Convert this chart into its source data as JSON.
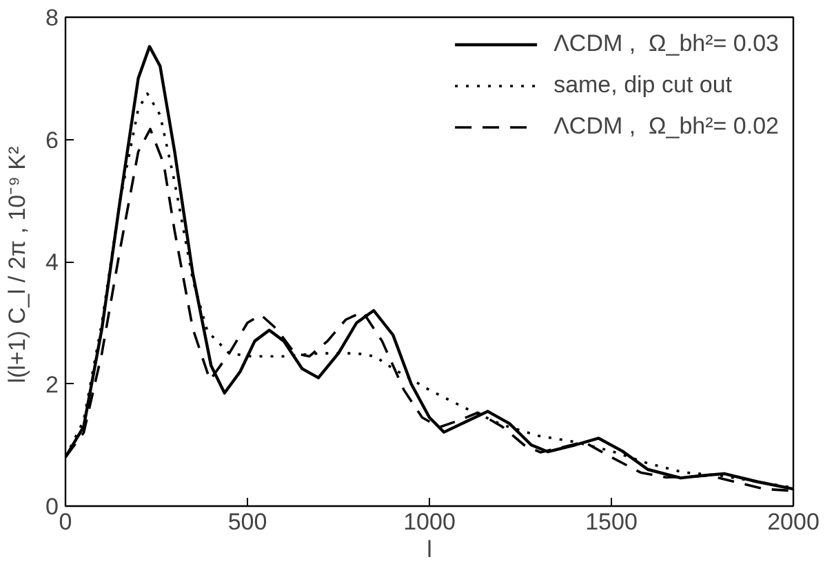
{
  "chart_data": {
    "type": "line",
    "xlabel": "l",
    "ylabel": "l(l+1) C_l / 2π ,  10⁻⁹ K²",
    "xlim": [
      0,
      2000
    ],
    "ylim": [
      0,
      8
    ],
    "xticks": [
      0,
      500,
      1000,
      1500,
      2000
    ],
    "yticks": [
      0,
      2,
      4,
      6,
      8
    ],
    "grid": false,
    "legend": "top right",
    "marker": "none",
    "series": [
      {
        "name": "ΛCDM ,  Ω_bh²= 0.03",
        "color": "#000000",
        "line_style": "solid",
        "x": [
          0,
          50,
          100,
          150,
          200,
          231,
          260,
          300,
          350,
          400,
          437,
          480,
          520,
          560,
          600,
          650,
          695,
          750,
          800,
          847,
          900,
          950,
          1000,
          1040,
          1100,
          1160,
          1220,
          1280,
          1325,
          1400,
          1465,
          1530,
          1600,
          1690,
          1750,
          1810,
          1900,
          2000
        ],
        "values": [
          0.8,
          1.3,
          2.9,
          5.0,
          7.0,
          7.52,
          7.2,
          5.8,
          3.8,
          2.3,
          1.85,
          2.2,
          2.7,
          2.88,
          2.7,
          2.25,
          2.1,
          2.5,
          3.0,
          3.2,
          2.8,
          2.0,
          1.45,
          1.21,
          1.38,
          1.55,
          1.35,
          1.0,
          0.89,
          1.0,
          1.11,
          0.9,
          0.6,
          0.46,
          0.5,
          0.53,
          0.4,
          0.28
        ]
      },
      {
        "name": "same, dip cut out",
        "color": "#000000",
        "line_style": "dotted",
        "x": [
          0,
          50,
          100,
          150,
          200,
          225,
          260,
          300,
          350,
          390,
          450,
          510,
          600,
          700,
          800,
          850,
          900,
          1000,
          1100,
          1200,
          1300,
          1400,
          1500,
          1600,
          1700,
          1800,
          1900,
          2000
        ],
        "values": [
          0.8,
          1.4,
          3.0,
          5.0,
          6.5,
          6.75,
          6.4,
          5.3,
          3.7,
          2.86,
          2.5,
          2.45,
          2.45,
          2.5,
          2.5,
          2.45,
          2.25,
          1.9,
          1.6,
          1.33,
          1.15,
          1.05,
          0.9,
          0.7,
          0.55,
          0.5,
          0.4,
          0.3
        ]
      },
      {
        "name": "ΛCDM ,  Ω_bh²= 0.02",
        "color": "#000000",
        "line_style": "dashed",
        "x": [
          0,
          50,
          100,
          150,
          200,
          233,
          270,
          300,
          350,
          397,
          450,
          500,
          537,
          580,
          630,
          670,
          720,
          770,
          817,
          870,
          930,
          980,
          1027,
          1080,
          1133,
          1200,
          1260,
          1305,
          1370,
          1425,
          1500,
          1580,
          1650,
          1710,
          1770,
          1850,
          1920,
          2000
        ],
        "values": [
          0.8,
          1.2,
          2.5,
          4.2,
          5.8,
          6.17,
          5.6,
          4.5,
          2.9,
          2.06,
          2.5,
          3.0,
          3.13,
          2.9,
          2.5,
          2.45,
          2.7,
          3.05,
          3.18,
          2.7,
          1.9,
          1.45,
          1.29,
          1.4,
          1.53,
          1.3,
          1.0,
          0.88,
          0.97,
          1.05,
          0.8,
          0.55,
          0.47,
          0.48,
          0.5,
          0.38,
          0.28,
          0.25
        ]
      }
    ]
  }
}
